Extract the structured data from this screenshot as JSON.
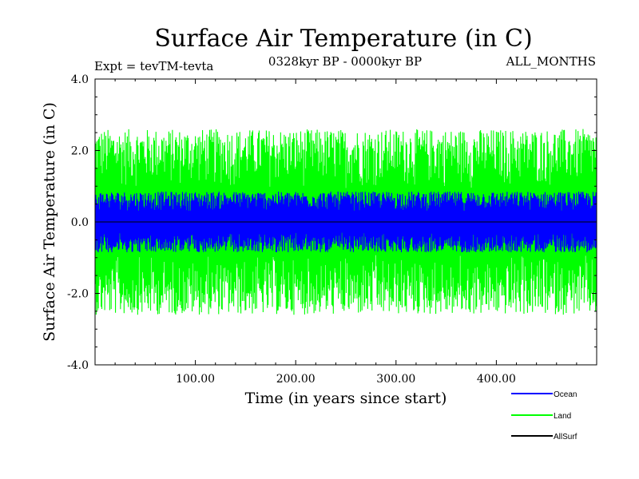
{
  "title": "Surface Air Temperature (in C)",
  "subtitle_left": "Expt = tevTM-tevta",
  "subtitle_center": "0328kyr BP - 0000kyr BP",
  "subtitle_right": "ALL_MONTHS",
  "chart_data": {
    "type": "line",
    "title": "Surface Air Temperature (in C)",
    "xlabel": "Time (in years since start)",
    "ylabel": "Surface Air Temperature (in C)",
    "xlim": [
      0,
      500
    ],
    "ylim": [
      -4.0,
      4.0
    ],
    "x_ticks": [
      100,
      200,
      300,
      400
    ],
    "x_tick_labels": [
      "100.00",
      "200.00",
      "300.00",
      "400.00"
    ],
    "y_ticks": [
      -4.0,
      -2.0,
      0.0,
      2.0,
      4.0
    ],
    "y_tick_labels": [
      "-4.0",
      "-2.0",
      "0.0",
      "2.0",
      "4.0"
    ],
    "grid": false,
    "legend_position": "bottom-right, below plot",
    "series": [
      {
        "name": "Land",
        "color": "#00ff00",
        "amplitude": 2.6,
        "peak_max": 3.05,
        "peak_min": -3.2
      },
      {
        "name": "Ocean",
        "color": "#0000ff",
        "amplitude": 0.85,
        "peak_max": 1.05,
        "peak_min": -1.0
      },
      {
        "name": "AllSurf",
        "color": "#000000",
        "amplitude": 0.0
      }
    ],
    "legend": [
      {
        "name": "Ocean",
        "color": "#0000ff"
      },
      {
        "name": "Land",
        "color": "#00ff00"
      },
      {
        "name": "AllSurf",
        "color": "#000000"
      }
    ]
  }
}
